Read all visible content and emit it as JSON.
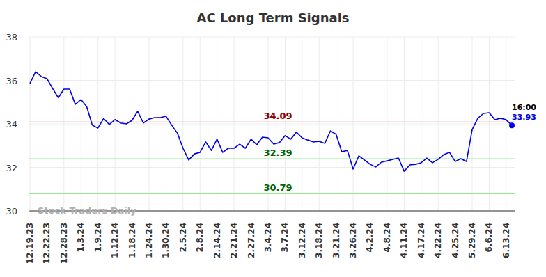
{
  "chart_data": {
    "type": "line",
    "title": "AC Long Term Signals",
    "categories": [
      "12.19.23",
      null,
      null,
      "12.22.23",
      null,
      null,
      "12.28.23",
      null,
      null,
      "1.3.24",
      null,
      null,
      "1.9.24",
      null,
      null,
      "1.12.24",
      null,
      null,
      "1.18.24",
      null,
      null,
      "1.24.24",
      null,
      null,
      "1.30.24",
      null,
      null,
      "2.5.24",
      null,
      null,
      "2.8.24",
      null,
      null,
      "2.14.24",
      null,
      null,
      "2.21.24",
      null,
      null,
      "2.27.24",
      null,
      null,
      "3.4.24",
      null,
      null,
      "3.7.24",
      null,
      null,
      "3.12.24",
      null,
      null,
      "3.18.24",
      null,
      null,
      "3.21.24",
      null,
      null,
      "3.26.24",
      null,
      null,
      "4.2.24",
      null,
      null,
      "4.8.24",
      null,
      null,
      "4.11.24",
      null,
      null,
      "4.17.24",
      null,
      null,
      "4.22.24",
      null,
      null,
      "4.25.24",
      null,
      null,
      "5.29.24",
      null,
      null,
      "6.6.24",
      null,
      null,
      "6.13.24",
      null
    ],
    "series": [
      {
        "name": "AC",
        "color": "#0000e6",
        "marker": "last",
        "values": [
          35.86,
          36.4,
          36.18,
          36.08,
          35.63,
          35.2,
          35.6,
          35.6,
          34.9,
          35.12,
          34.8,
          33.94,
          33.81,
          34.25,
          33.97,
          34.2,
          34.04,
          34.0,
          34.16,
          34.58,
          34.04,
          34.22,
          34.29,
          34.29,
          34.35,
          33.94,
          33.58,
          32.88,
          32.34,
          32.62,
          32.69,
          33.17,
          32.78,
          33.3,
          32.69,
          32.88,
          32.88,
          33.07,
          32.88,
          33.3,
          33.04,
          33.39,
          33.36,
          33.07,
          33.14,
          33.46,
          33.3,
          33.62,
          33.36,
          33.26,
          33.17,
          33.2,
          33.1,
          33.68,
          33.52,
          32.72,
          32.78,
          31.92,
          32.53,
          32.34,
          32.14,
          32.02,
          32.24,
          32.3,
          32.37,
          32.43,
          31.82,
          32.11,
          32.14,
          32.21,
          32.43,
          32.21,
          32.37,
          32.59,
          32.69,
          32.27,
          32.4,
          32.27,
          33.74,
          34.26,
          34.48,
          34.51,
          34.19,
          34.26,
          34.19,
          33.93
        ]
      }
    ],
    "ylim": [
      30,
      38
    ],
    "yticks": [
      30,
      32,
      34,
      36,
      38
    ],
    "grid": true,
    "reference_lines": [
      {
        "value": 34.09,
        "color": "#ffc0c0",
        "label_color": "#8b0000"
      },
      {
        "value": 32.39,
        "color": "#90ee90",
        "label_color": "#006400"
      },
      {
        "value": 30.79,
        "color": "#90ee90",
        "label_color": "#006400"
      }
    ],
    "annotations": [
      {
        "text": "16:00"
      },
      {
        "text": "Stock Traders Daily"
      }
    ]
  }
}
